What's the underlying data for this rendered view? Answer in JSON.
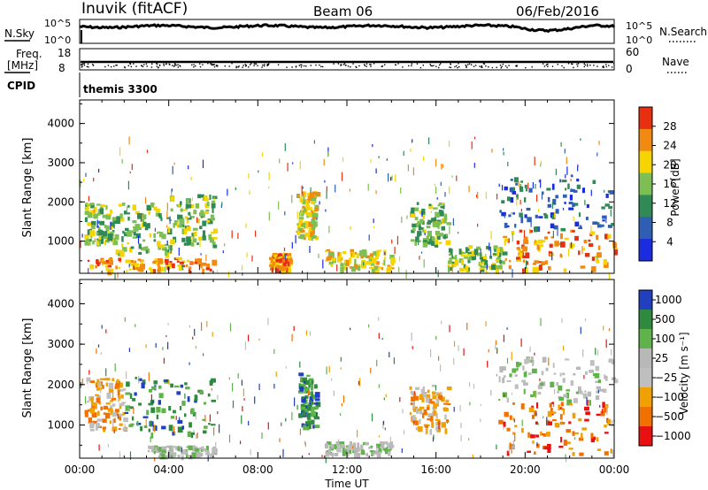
{
  "header": {
    "station": "Inuvik (fitACF)",
    "beam": "Beam 06",
    "date": "06/Feb/2016"
  },
  "chart_data": [
    {
      "panel": "noise",
      "type": "line",
      "left_label": "N.Sky",
      "right_label": "N.Search",
      "left_ticks": [
        "10^5",
        "10^0"
      ],
      "right_ticks": [
        "10^5",
        "10^0"
      ],
      "right_legend_style": "dotted",
      "x_range_hours": [
        0,
        24
      ],
      "note": "N.Sky trace stays near the top of the panel all day, with a dip around 21:00 UT"
    },
    {
      "panel": "frequency",
      "type": "scatter",
      "left_label": "Freq.",
      "left_unit": "[MHz]",
      "right_label": "Nave",
      "left_ticks": [
        "18",
        "8"
      ],
      "right_ticks": [
        "60",
        "0"
      ],
      "right_legend_style": "dotted",
      "freq_level_mhz": 11.5
    },
    {
      "panel": "cpid",
      "type": "table",
      "label": "CPID",
      "value": "themis 3300"
    },
    {
      "panel": "power",
      "type": "heatmap",
      "xlabel": "",
      "ylabel": "Slant Range [km]",
      "y_ticks": [
        "1000",
        "2000",
        "3000",
        "4000"
      ],
      "ylim": [
        180,
        4600
      ],
      "colorbar_label": "Power [dB]",
      "colorbar_ticks": [
        "4",
        "8",
        "12",
        "16",
        "20",
        "24",
        "28"
      ],
      "colorbar_colors": [
        "#1a2be0",
        "#2e5fb4",
        "#2f8a55",
        "#7dbf53",
        "#f5d400",
        "#f08a10",
        "#e83010"
      ],
      "echo_regions": [
        {
          "t0": 0.2,
          "t1": 1.5,
          "r0": 1000,
          "r1": 2000,
          "level": 3
        },
        {
          "t0": 1.5,
          "t1": 4.0,
          "r0": 700,
          "r1": 2000,
          "level": 3
        },
        {
          "t0": 4.0,
          "t1": 6.0,
          "r0": 900,
          "r1": 2200,
          "level": 3
        },
        {
          "t0": 0.3,
          "t1": 6.0,
          "r0": 250,
          "r1": 600,
          "level": 5
        },
        {
          "t0": 9.7,
          "t1": 10.6,
          "r0": 1100,
          "r1": 2300,
          "level": 4
        },
        {
          "t0": 8.5,
          "t1": 9.4,
          "r0": 300,
          "r1": 700,
          "level": 5
        },
        {
          "t0": 11.0,
          "t1": 14.0,
          "r0": 300,
          "r1": 800,
          "level": 4
        },
        {
          "t0": 14.8,
          "t1": 16.5,
          "r0": 900,
          "r1": 2000,
          "level": 3
        },
        {
          "t0": 16.5,
          "t1": 19.0,
          "r0": 300,
          "r1": 900,
          "level": 3
        },
        {
          "t0": 18.8,
          "t1": 24.0,
          "r0": 1300,
          "r1": 2700,
          "level": 1
        },
        {
          "t0": 19.0,
          "t1": 24.0,
          "r0": 300,
          "r1": 1300,
          "level": 5
        }
      ]
    },
    {
      "panel": "velocity",
      "type": "heatmap",
      "xlabel": "Time UT",
      "ylabel": "Slant Range [km]",
      "x_ticks": [
        "00:00",
        "04:00",
        "08:00",
        "12:00",
        "16:00",
        "20:00",
        "00:00"
      ],
      "y_ticks": [
        "1000",
        "2000",
        "3000",
        "4000"
      ],
      "ylim": [
        180,
        4600
      ],
      "colorbar_label": "Velocity [m s⁻¹]",
      "colorbar_ticks": [
        "1000",
        "500",
        "100",
        "25",
        "−25",
        "−100",
        "−500",
        "−1000"
      ],
      "colorbar_colors": [
        "#2040c0",
        "#2e8a3e",
        "#5fb34a",
        "#b8b8b8",
        "#bfbfbf",
        "#f0a000",
        "#f07000",
        "#e81010"
      ],
      "echo_regions": [
        {
          "t0": 0.2,
          "t1": 2.0,
          "r0": 900,
          "r1": 2200,
          "level": 5
        },
        {
          "t0": 2.0,
          "t1": 6.0,
          "r0": 800,
          "r1": 2200,
          "level": 1
        },
        {
          "t0": 3.0,
          "t1": 6.0,
          "r0": 250,
          "r1": 500,
          "level": 3
        },
        {
          "t0": 9.8,
          "t1": 10.6,
          "r0": 1000,
          "r1": 2300,
          "level": 1
        },
        {
          "t0": 11.0,
          "t1": 14.0,
          "r0": 300,
          "r1": 600,
          "level": 3
        },
        {
          "t0": 14.8,
          "t1": 16.5,
          "r0": 900,
          "r1": 2000,
          "level": 5
        },
        {
          "t0": 18.8,
          "t1": 24.0,
          "r0": 1600,
          "r1": 2700,
          "level": 3
        },
        {
          "t0": 18.8,
          "t1": 24.0,
          "r0": 300,
          "r1": 1600,
          "level": 6
        }
      ]
    }
  ]
}
